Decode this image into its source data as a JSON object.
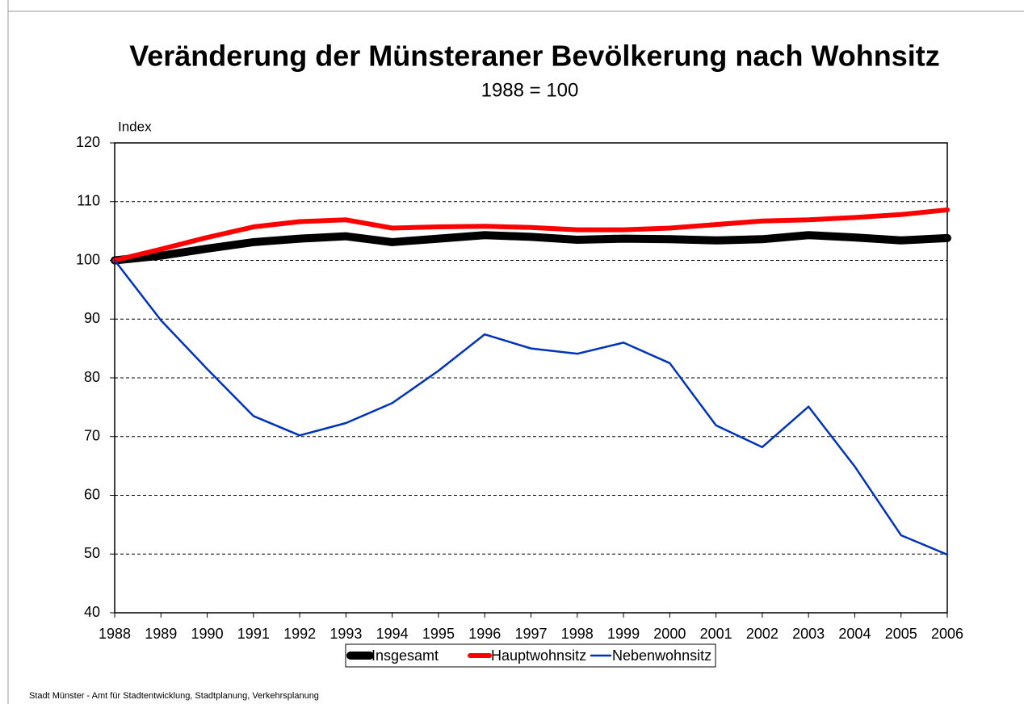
{
  "chart_data": {
    "type": "line",
    "title": "Veränderung der Münsteraner Bevölkerung nach Wohnsitz",
    "subtitle": "1988 = 100",
    "y_label": "Index",
    "source": "Stadt Münster - Amt für Stadtentwicklung, Stadtplanung, Verkehrsplanung",
    "x": [
      1988,
      1989,
      1990,
      1991,
      1992,
      1993,
      1994,
      1995,
      1996,
      1997,
      1998,
      1999,
      2000,
      2001,
      2002,
      2003,
      2004,
      2005,
      2006
    ],
    "xlim": [
      1988,
      2006
    ],
    "xticks": [
      1988,
      1989,
      1990,
      1991,
      1992,
      1993,
      1994,
      1995,
      1996,
      1997,
      1998,
      1999,
      2000,
      2001,
      2002,
      2003,
      2004,
      2005,
      2006
    ],
    "ylim": [
      40,
      120
    ],
    "yticks": [
      40,
      50,
      60,
      70,
      80,
      90,
      100,
      110,
      120
    ],
    "grid": true,
    "legend": "bottom",
    "series": [
      {
        "name": "Insgesamt",
        "color": "#000000",
        "values": [
          100,
          100.8,
          102,
          103.1,
          103.7,
          104.1,
          103.1,
          103.7,
          104.3,
          104,
          103.5,
          103.7,
          103.6,
          103.4,
          103.6,
          104.3,
          103.9,
          103.4,
          103.8
        ]
      },
      {
        "name": "Hauptwohnsitz",
        "color": "#ff0000",
        "values": [
          100,
          101.9,
          103.9,
          105.7,
          106.6,
          106.9,
          105.5,
          105.7,
          105.8,
          105.6,
          105.2,
          105.2,
          105.5,
          106.1,
          106.7,
          106.9,
          107.3,
          107.8,
          108.6
        ]
      },
      {
        "name": "Nebenwohnsitz",
        "color": "#0033bb",
        "values": [
          100,
          89.8,
          81.5,
          73.5,
          70.2,
          72.3,
          75.7,
          81.2,
          87.4,
          85,
          84.1,
          86,
          82.5,
          71.9,
          68.2,
          75.1,
          64.9,
          53.2,
          49.9
        ]
      }
    ]
  }
}
